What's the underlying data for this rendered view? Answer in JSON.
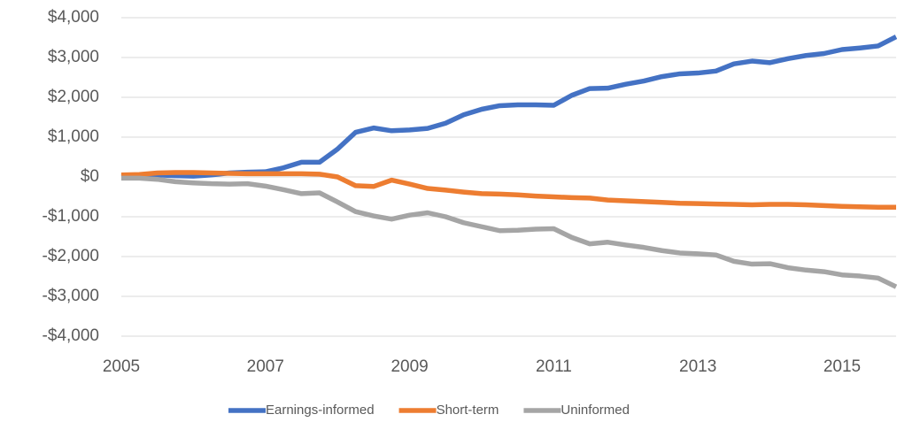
{
  "chart_data": {
    "type": "line",
    "x": [
      2005,
      2005.25,
      2005.5,
      2005.75,
      2006,
      2006.25,
      2006.5,
      2006.75,
      2007,
      2007.25,
      2007.5,
      2007.75,
      2008,
      2008.25,
      2008.5,
      2008.75,
      2009,
      2009.25,
      2009.5,
      2009.75,
      2010,
      2010.25,
      2010.5,
      2010.75,
      2011,
      2011.25,
      2011.5,
      2011.75,
      2012,
      2012.25,
      2012.5,
      2012.75,
      2013,
      2013.25,
      2013.5,
      2013.75,
      2014,
      2014.25,
      2014.5,
      2014.75,
      2015,
      2015.25,
      2015.5,
      2015.75
    ],
    "series": [
      {
        "name": "Earnings-informed",
        "color": "#4472c4",
        "values": [
          0,
          30,
          50,
          30,
          20,
          50,
          100,
          120,
          130,
          230,
          370,
          370,
          700,
          1120,
          1230,
          1160,
          1180,
          1220,
          1350,
          1560,
          1700,
          1790,
          1810,
          1810,
          1800,
          2050,
          2220,
          2230,
          2330,
          2410,
          2520,
          2590,
          2610,
          2660,
          2840,
          2910,
          2870,
          2970,
          3050,
          3100,
          3200,
          3240,
          3290,
          3520
        ]
      },
      {
        "name": "Short-term",
        "color": "#ed7d31",
        "values": [
          50,
          60,
          100,
          110,
          110,
          100,
          90,
          80,
          80,
          80,
          80,
          70,
          0,
          -220,
          -240,
          -80,
          -180,
          -290,
          -330,
          -380,
          -420,
          -430,
          -450,
          -480,
          -500,
          -520,
          -530,
          -580,
          -600,
          -620,
          -640,
          -660,
          -670,
          -680,
          -690,
          -700,
          -690,
          -690,
          -700,
          -720,
          -740,
          -750,
          -760,
          -760
        ]
      },
      {
        "name": "Uninformed",
        "color": "#a5a5a5",
        "values": [
          -30,
          -30,
          -60,
          -120,
          -150,
          -170,
          -180,
          -170,
          -230,
          -320,
          -420,
          -400,
          -630,
          -870,
          -980,
          -1060,
          -960,
          -900,
          -1000,
          -1150,
          -1250,
          -1350,
          -1340,
          -1310,
          -1300,
          -1520,
          -1680,
          -1640,
          -1710,
          -1770,
          -1850,
          -1910,
          -1930,
          -1960,
          -2120,
          -2190,
          -2180,
          -2280,
          -2340,
          -2380,
          -2460,
          -2490,
          -2540,
          -2760
        ]
      }
    ],
    "xlim": [
      2005,
      2015.75
    ],
    "xticks": [
      2005,
      2007,
      2009,
      2011,
      2013,
      2015
    ],
    "ylim": [
      -4000,
      4000
    ],
    "yticks": [
      {
        "value": -4000,
        "label": "-$4,000"
      },
      {
        "value": -3000,
        "label": "-$3,000"
      },
      {
        "value": -2000,
        "label": "-$2,000"
      },
      {
        "value": -1000,
        "label": "-$1,000"
      },
      {
        "value": 0,
        "label": "$0"
      },
      {
        "value": 1000,
        "label": "$1,000"
      },
      {
        "value": 2000,
        "label": "$2,000"
      },
      {
        "value": 3000,
        "label": "$3,000"
      },
      {
        "value": 4000,
        "label": "$4,000"
      }
    ],
    "grid": true,
    "legend": "bottom"
  }
}
